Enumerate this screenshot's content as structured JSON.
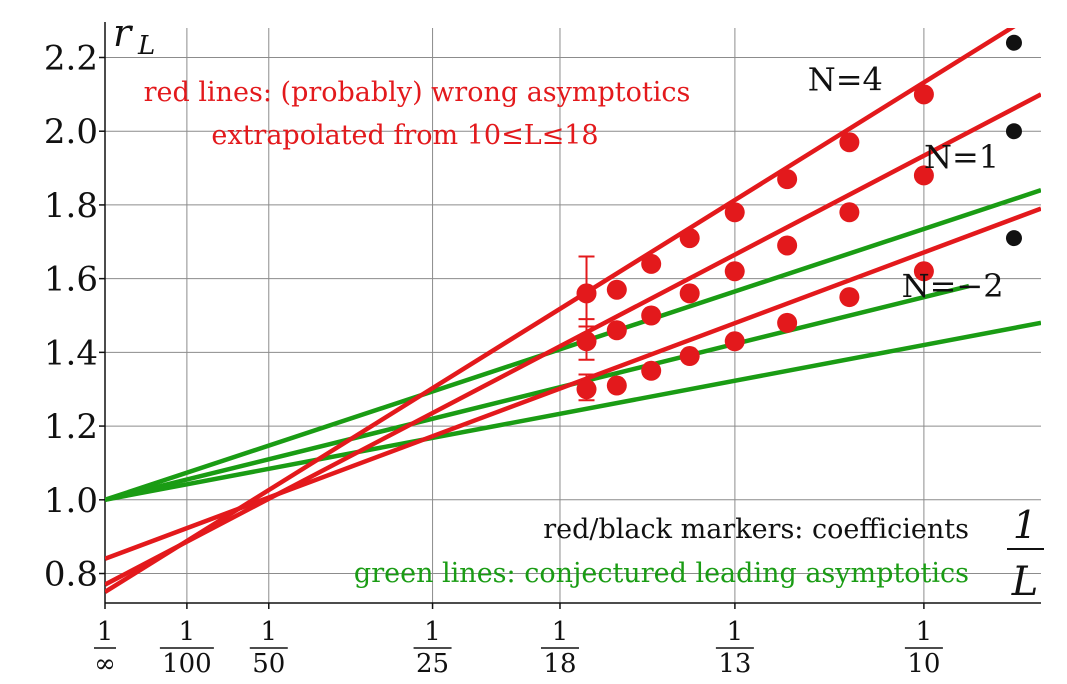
{
  "chart_data": {
    "type": "line",
    "ylabel": "r",
    "ylabel_sub": "L",
    "xlabel_num": "1",
    "xlabel_den": "L",
    "ylim": [
      0.72,
      2.28
    ],
    "xlim": [
      0,
      0.1143
    ],
    "y_ticks": [
      {
        "v": 0.8,
        "label": "0.8"
      },
      {
        "v": 1.0,
        "label": "1.0"
      },
      {
        "v": 1.2,
        "label": "1.2"
      },
      {
        "v": 1.4,
        "label": "1.4"
      },
      {
        "v": 1.6,
        "label": "1.6"
      },
      {
        "v": 1.8,
        "label": "1.8"
      },
      {
        "v": 2.0,
        "label": "2.0"
      },
      {
        "v": 2.2,
        "label": "2.2"
      }
    ],
    "x_ticks": [
      {
        "v": 0,
        "num": "1",
        "den": "∞"
      },
      {
        "v": 0.01,
        "num": "1",
        "den": "100"
      },
      {
        "v": 0.02,
        "num": "1",
        "den": "50"
      },
      {
        "v": 0.04,
        "num": "1",
        "den": "25"
      },
      {
        "v": 0.05556,
        "num": "1",
        "den": "18"
      },
      {
        "v": 0.07692,
        "num": "1",
        "den": "13"
      },
      {
        "v": 0.1,
        "num": "1",
        "den": "10"
      }
    ],
    "grid": true,
    "colors": {
      "red": "#e3191c",
      "green": "#1a9c14",
      "black": "#111111",
      "grid": "#8c8c8c"
    },
    "red_lines": [
      {
        "series": "N=4",
        "x": [
          0,
          0.1143
        ],
        "y": [
          0.75,
          2.33
        ]
      },
      {
        "series": "N=1",
        "x": [
          0,
          0.1143
        ],
        "y": [
          0.77,
          2.1
        ]
      },
      {
        "series": "N=-2",
        "x": [
          0,
          0.1143
        ],
        "y": [
          0.84,
          1.79
        ]
      }
    ],
    "green_lines": [
      {
        "x": [
          0,
          0.1143
        ],
        "y": [
          1.0,
          1.84
        ]
      },
      {
        "x": [
          0,
          0.1055
        ],
        "y": [
          1.0,
          1.58
        ]
      },
      {
        "x": [
          0,
          0.1143
        ],
        "y": [
          1.0,
          1.48
        ]
      }
    ],
    "series": [
      {
        "name": "N=4",
        "x": [
          0.0588,
          0.0625,
          0.0667,
          0.0714,
          0.0769,
          0.0833,
          0.0909,
          0.1
        ],
        "y": [
          1.56,
          1.57,
          1.64,
          1.71,
          1.78,
          1.87,
          1.97,
          2.1
        ],
        "black_x": 0.111,
        "black_y": 2.24
      },
      {
        "name": "N=1",
        "x": [
          0.0588,
          0.0625,
          0.0667,
          0.0714,
          0.0769,
          0.0833,
          0.0909,
          0.1
        ],
        "y": [
          1.43,
          1.46,
          1.5,
          1.56,
          1.62,
          1.69,
          1.78,
          1.88
        ],
        "black_x": 0.111,
        "black_y": 2.0
      },
      {
        "name": "N=-2",
        "x": [
          0.0588,
          0.0625,
          0.0667,
          0.0714,
          0.0769,
          0.0833,
          0.0909,
          0.1
        ],
        "y": [
          1.3,
          1.31,
          1.35,
          1.39,
          1.43,
          1.48,
          1.55,
          1.62
        ],
        "black_x": 0.111,
        "black_y": 1.71
      }
    ],
    "error_bars": [
      {
        "x": 0.0588,
        "lo": 1.47,
        "hi": 1.66
      },
      {
        "x": 0.0588,
        "lo": 1.38,
        "hi": 1.49
      },
      {
        "x": 0.0588,
        "lo": 1.27,
        "hi": 1.34
      }
    ],
    "series_labels": [
      {
        "text": "N=4",
        "x": 0.0904,
        "y": 2.11
      },
      {
        "text": "N=1",
        "x": 0.1046,
        "y": 1.9
      },
      {
        "text": "N=−2",
        "x": 0.1035,
        "y": 1.55
      }
    ],
    "annotations": {
      "red_line1": "red lines: (probably) wrong asymptotics",
      "red_line2": "extrapolated from 10≤L≤18",
      "black": "red/black markers: coefficients",
      "green": "green lines: conjectured leading asymptotics"
    }
  }
}
